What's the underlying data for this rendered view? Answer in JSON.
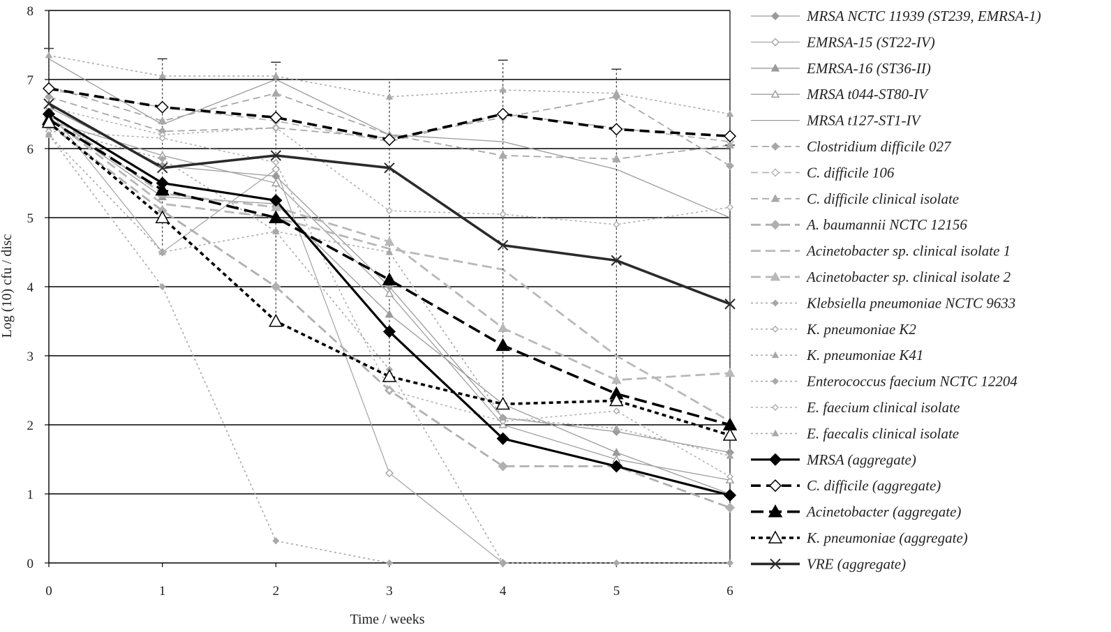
{
  "chart_data": {
    "type": "line",
    "title": "",
    "xlabel": "Time / weeks",
    "ylabel": "Log (10) cfu / disc",
    "xlim": [
      0,
      6
    ],
    "ylim": [
      0,
      8
    ],
    "x": [
      0,
      1,
      2,
      3,
      4,
      5,
      6
    ],
    "x_ticks": [
      "0",
      "1",
      "2",
      "3",
      "4",
      "5",
      "6"
    ],
    "y_ticks": [
      "0",
      "1",
      "2",
      "3",
      "4",
      "5",
      "6",
      "7",
      "8"
    ],
    "grid": "horizontal",
    "legend_position": "right",
    "series": [
      {
        "name": "MRSA NCTC 11939 (ST239, EMRSA-1)",
        "values": [
          6.6,
          5.75,
          5.6,
          4.0,
          2.1,
          1.9,
          1.6
        ],
        "color": "#9a9a9a",
        "dash": "solid",
        "width": 1.3,
        "marker": "diamond-filled",
        "marker_size": 5
      },
      {
        "name": "EMRSA-15 (ST22-IV)",
        "values": [
          6.55,
          4.5,
          5.7,
          1.3,
          0.0,
          null,
          null
        ],
        "color": "#a8a8a8",
        "dash": "solid",
        "width": 1.3,
        "marker": "diamond-open",
        "marker_size": 5
      },
      {
        "name": "EMRSA-16 (ST36-II)",
        "values": [
          6.45,
          5.3,
          5.2,
          3.6,
          2.3,
          1.6,
          1.0
        ],
        "color": "#9a9a9a",
        "dash": "solid",
        "width": 1.3,
        "marker": "triangle-filled",
        "marker_size": 5
      },
      {
        "name": "MRSA t044-ST80-IV",
        "values": [
          6.4,
          5.9,
          5.5,
          3.9,
          2.0,
          1.5,
          1.2
        ],
        "color": "#a0a0a0",
        "dash": "solid",
        "width": 1.3,
        "marker": "triangle-open",
        "marker_size": 5
      },
      {
        "name": "MRSA t127-ST1-IV",
        "values": [
          7.3,
          6.35,
          7.0,
          6.2,
          6.1,
          5.7,
          5.0
        ],
        "color": "#9a9a9a",
        "dash": "solid",
        "width": 1.3,
        "marker": "none",
        "marker_size": 0
      },
      {
        "name": "Clostridium difficile 027",
        "values": [
          6.75,
          6.25,
          6.3,
          6.15,
          6.45,
          6.75,
          5.75
        ],
        "color": "#a8a8a8",
        "dash": "10,6",
        "width": 1.8,
        "marker": "diamond-filled",
        "marker_size": 5
      },
      {
        "name": "C. difficile 106",
        "values": [
          6.85,
          6.6,
          6.4,
          6.1,
          6.5,
          6.3,
          6.1
        ],
        "color": "#b4b4b4",
        "dash": "10,6",
        "width": 1.8,
        "marker": "diamond-open",
        "marker_size": 5
      },
      {
        "name": "C. difficile clinical isolate",
        "values": [
          6.9,
          6.4,
          6.8,
          6.2,
          5.9,
          5.85,
          6.05
        ],
        "color": "#a8a8a8",
        "dash": "10,6",
        "width": 1.8,
        "marker": "triangle-filled",
        "marker_size": 5
      },
      {
        "name": "A. baumannii NCTC 12156",
        "values": [
          6.35,
          5.1,
          4.0,
          2.5,
          1.4,
          1.4,
          0.8
        ],
        "color": "#b0b0b0",
        "dash": "14,7",
        "width": 2.8,
        "marker": "diamond-filled",
        "marker_size": 6
      },
      {
        "name": "Acinetobacter sp. clinical isolate 1",
        "values": [
          6.45,
          5.2,
          5.0,
          4.55,
          4.25,
          3.0,
          2.05
        ],
        "color": "#b8b8b8",
        "dash": "14,7",
        "width": 2.8,
        "marker": "none",
        "marker_size": 0
      },
      {
        "name": "Acinetobacter sp. clinical isolate 2",
        "values": [
          6.5,
          5.35,
          5.15,
          4.65,
          3.4,
          2.65,
          2.75
        ],
        "color": "#b8b8b8",
        "dash": "14,7",
        "width": 2.8,
        "marker": "triangle-filled",
        "marker_size": 6
      },
      {
        "name": "Klebsiella pneumoniae NCTC 9633",
        "values": [
          6.2,
          4.0,
          0.32,
          0.0,
          null,
          null,
          null
        ],
        "color": "#a8a8a8",
        "dash": "3,4",
        "width": 1.6,
        "marker": "diamond-filled",
        "marker_size": 4
      },
      {
        "name": "K. pneumoniae K2",
        "values": [
          6.6,
          6.2,
          6.3,
          5.1,
          5.05,
          4.9,
          5.15
        ],
        "color": "#b0b0b0",
        "dash": "3,4",
        "width": 1.6,
        "marker": "diamond-open",
        "marker_size": 4
      },
      {
        "name": "K. pneumoniae K41",
        "values": [
          7.35,
          7.05,
          7.05,
          6.75,
          6.85,
          6.8,
          6.5
        ],
        "color": "#a8a8a8",
        "dash": "3,4",
        "width": 1.6,
        "marker": "triangle-filled",
        "marker_size": 4
      },
      {
        "name": "Enterococcus faecium NCTC 12204",
        "values": [
          6.3,
          5.85,
          4.8,
          2.8,
          0.0,
          0.0,
          0.0
        ],
        "color": "#a8a8a8",
        "dash": "3,4",
        "width": 1.6,
        "marker": "diamond-filled",
        "marker_size": 4
      },
      {
        "name": "E. faecium clinical isolate",
        "values": [
          6.25,
          6.15,
          5.8,
          2.5,
          2.05,
          2.2,
          1.25
        ],
        "color": "#b0b0b0",
        "dash": "3,4",
        "width": 1.6,
        "marker": "diamond-open",
        "marker_size": 4
      },
      {
        "name": "E. faecalis clinical isolate",
        "values": [
          6.2,
          4.5,
          4.8,
          4.5,
          2.1,
          1.95,
          1.55
        ],
        "color": "#a8a8a8",
        "dash": "3,4",
        "width": 1.6,
        "marker": "triangle-filled",
        "marker_size": 4
      },
      {
        "name": "MRSA (aggregate)",
        "values": [
          6.5,
          5.5,
          5.25,
          3.35,
          1.8,
          1.4,
          0.98
        ],
        "color": "#000000",
        "dash": "solid",
        "width": 3.2,
        "marker": "diamond-filled",
        "marker_size": 8
      },
      {
        "name": "C. difficile (aggregate)",
        "values": [
          6.87,
          6.6,
          6.45,
          6.13,
          6.5,
          6.28,
          6.18
        ],
        "color": "#000000",
        "dash": "14,8",
        "width": 3.6,
        "marker": "diamond-open",
        "marker_size": 8
      },
      {
        "name": "Acinetobacter (aggregate)",
        "values": [
          6.42,
          5.4,
          5.0,
          4.1,
          3.15,
          2.45,
          2.0
        ],
        "color": "#000000",
        "dash": "18,8",
        "width": 3.6,
        "marker": "triangle-filled",
        "marker_size": 9
      },
      {
        "name": "K. pneumoniae (aggregate)",
        "values": [
          6.38,
          5.0,
          3.5,
          2.7,
          2.3,
          2.35,
          1.85
        ],
        "color": "#000000",
        "dash": "6,5",
        "width": 3.6,
        "marker": "triangle-open",
        "marker_size": 9
      },
      {
        "name": "VRE (aggregate)",
        "values": [
          6.65,
          5.72,
          5.9,
          5.72,
          4.6,
          4.38,
          3.75
        ],
        "color": "#2a2a2a",
        "dash": "solid",
        "width": 3.6,
        "marker": "x",
        "marker_size": 7
      }
    ],
    "error_bars": [
      {
        "x": 0,
        "low": 6.3,
        "high": 7.45
      },
      {
        "x": 1,
        "low": 4.6,
        "high": 7.3
      },
      {
        "x": 2,
        "low": 3.5,
        "high": 7.25
      },
      {
        "x": 3,
        "low": 2.7,
        "high": 7.0
      },
      {
        "x": 4,
        "low": 2.3,
        "high": 7.28
      },
      {
        "x": 5,
        "low": 2.4,
        "high": 7.15
      },
      {
        "x": 6,
        "low": 2.0,
        "high": 6.05
      }
    ]
  }
}
